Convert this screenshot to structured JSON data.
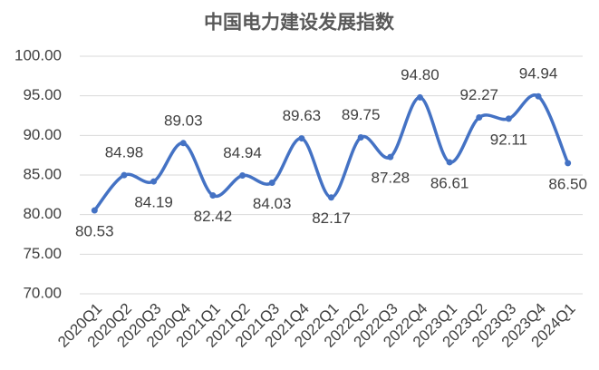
{
  "chart_data": {
    "type": "line",
    "title": "中国电力建设发展指数",
    "categories": [
      "2020Q1",
      "2020Q2",
      "2020Q3",
      "2020Q4",
      "2021Q1",
      "2021Q2",
      "2021Q3",
      "2021Q4",
      "2022Q1",
      "2022Q2",
      "2022Q3",
      "2022Q4",
      "2023Q1",
      "2023Q2",
      "2023Q3",
      "2023Q4",
      "2024Q1"
    ],
    "values": [
      80.53,
      84.98,
      84.19,
      89.03,
      82.42,
      84.94,
      84.03,
      89.63,
      82.17,
      89.75,
      87.28,
      94.8,
      86.61,
      92.27,
      92.11,
      94.94,
      86.5
    ],
    "value_labels": [
      "80.53",
      "84.98",
      "84.19",
      "89.03",
      "82.42",
      "84.94",
      "84.03",
      "89.63",
      "82.17",
      "89.75",
      "87.28",
      "94.80",
      "86.61",
      "92.27",
      "92.11",
      "94.94",
      "86.50"
    ],
    "color": "#4472c4",
    "ylim": [
      70,
      100
    ],
    "yticks": [
      {
        "value": 70,
        "label": "70.00"
      },
      {
        "value": 75,
        "label": "75.00"
      },
      {
        "value": 80,
        "label": "80.00"
      },
      {
        "value": 85,
        "label": "85.00"
      },
      {
        "value": 90,
        "label": "90.00"
      },
      {
        "value": 95,
        "label": "95.00"
      },
      {
        "value": 100,
        "label": "100.00"
      }
    ],
    "grid": true
  }
}
